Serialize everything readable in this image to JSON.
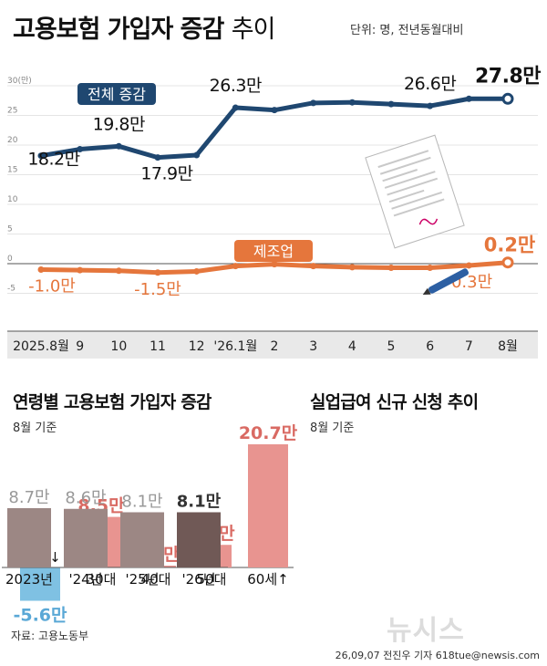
{
  "header": {
    "title_bold": "고용보험 가입자 증감",
    "title_light": "추이",
    "unit_note": "단위: 명, 전년동월대비"
  },
  "colors": {
    "total": "#1f4770",
    "manufacturing": "#e5763c",
    "age_positive": "#e89490",
    "age_negative": "#7fc1e3",
    "claims": "#9c8784",
    "claims_latest": "#705956"
  },
  "chart_data": [
    {
      "type": "line",
      "x": [
        "2025.8월",
        "9",
        "10",
        "11",
        "12",
        "'26.1월",
        "2",
        "3",
        "4",
        "5",
        "6",
        "7",
        "8월"
      ],
      "y_tick_labels": [
        "30(만)",
        "25",
        "20",
        "15",
        "10",
        "5",
        "0",
        "-5"
      ],
      "ylim": [
        -8,
        32
      ],
      "series": [
        {
          "name": "전체 증감",
          "values": [
            18.2,
            19.3,
            19.8,
            17.9,
            18.3,
            26.3,
            25.9,
            27.1,
            27.2,
            26.9,
            26.6,
            27.8,
            27.8
          ],
          "labels": [
            "18.2만",
            "",
            "19.8만",
            "17.9만",
            "",
            "26.3만",
            "",
            "",
            "",
            "",
            "26.6만",
            "",
            "27.8만"
          ]
        },
        {
          "name": "제조업",
          "values": [
            -1.0,
            -1.1,
            -1.2,
            -1.5,
            -1.3,
            -0.4,
            -0.1,
            -0.4,
            -0.6,
            -0.7,
            -0.7,
            -0.3,
            0.2
          ],
          "labels": [
            "-1.0만",
            "",
            "",
            "-1.5만",
            "",
            "",
            "",
            "",
            "",
            "",
            "",
            "-0.3만",
            "0.2만"
          ]
        }
      ]
    },
    {
      "type": "bar",
      "title": "연령별 고용보험 가입자 증감",
      "note": "8월 기준",
      "categories": [
        "29세↓",
        "30대",
        "40대",
        "50대",
        "60세↑"
      ],
      "values": [
        -5.6,
        8.5,
        0.3,
        3.8,
        20.7
      ],
      "labels": [
        "-5.6만",
        "8.5만",
        "0.3만",
        "3.8만",
        "20.7만"
      ]
    },
    {
      "type": "bar",
      "title": "실업급여 신규 신청 추이",
      "note": "8월 기준",
      "categories": [
        "2023년",
        "'24년",
        "'25년",
        "'26년"
      ],
      "values": [
        8.7,
        8.6,
        8.1,
        8.1
      ],
      "labels": [
        "8.7만",
        "8.6만",
        "8.1만",
        "8.1만"
      ]
    }
  ],
  "footer": {
    "source": "자료: 고용노동부",
    "credit": "26,09,07 전진우 기자 618tue@newsis.com",
    "logo": "뉴시스"
  }
}
